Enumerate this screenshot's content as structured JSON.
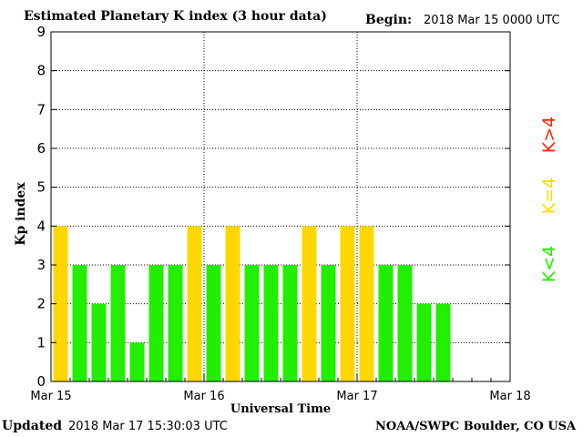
{
  "header": {
    "title": "Estimated Planetary K index (3 hour data)",
    "begin_label": "Begin:",
    "begin_value": "2018 Mar 15 0000 UTC"
  },
  "footer": {
    "updated_label": "Updated",
    "updated_value": "2018 Mar 17 15:30:03 UTC",
    "source": "NOAA/SWPC Boulder, CO USA"
  },
  "legend": {
    "high": "K>4",
    "equal": "K=4",
    "low": "K<4"
  },
  "colors": {
    "low": "#22ee00",
    "equal": "#ffd700",
    "high": "#ff2200",
    "grid": "#000000",
    "axis": "#000000"
  },
  "chart_data": {
    "type": "bar",
    "title": "Estimated Planetary K index (3 hour data)",
    "xlabel": "Universal Time",
    "ylabel": "Kp index",
    "ylim": [
      0,
      9
    ],
    "yticks": [
      "0",
      "1",
      "2",
      "3",
      "4",
      "5",
      "6",
      "7",
      "8",
      "9"
    ],
    "xticks": [
      "Mar 15",
      "Mar 16",
      "Mar 17",
      "Mar 18"
    ],
    "x_interval_hours": 3,
    "grid": true,
    "legend_position": "right",
    "values": [
      4,
      3,
      2,
      3,
      1,
      3,
      3,
      4,
      3,
      4,
      3,
      3,
      3,
      4,
      3,
      4,
      4,
      3,
      3,
      2,
      2
    ]
  }
}
